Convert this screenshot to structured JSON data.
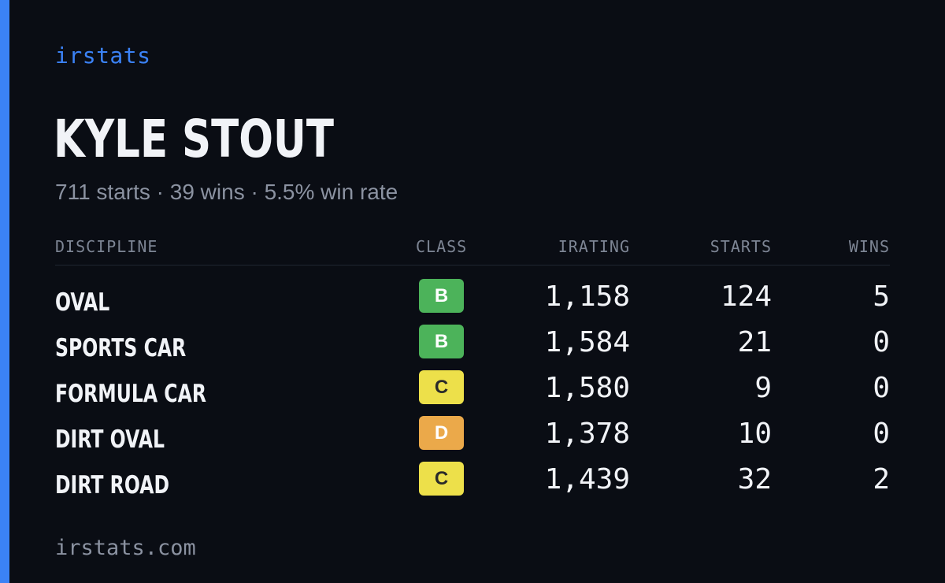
{
  "brand": "irstats",
  "driver_name": "KYLE STOUT",
  "summary": "711 starts · 39 wins · 5.5% win rate",
  "table": {
    "headers": {
      "discipline": "DISCIPLINE",
      "class": "CLASS",
      "irating": "IRATING",
      "starts": "STARTS",
      "wins": "WINS"
    },
    "rows": [
      {
        "discipline": "OVAL",
        "class": "B",
        "class_color": "#4cb35a",
        "class_text_color": "#ffffff",
        "irating": "1,158",
        "starts": "124",
        "wins": "5"
      },
      {
        "discipline": "SPORTS CAR",
        "class": "B",
        "class_color": "#4cb35a",
        "class_text_color": "#ffffff",
        "irating": "1,584",
        "starts": "21",
        "wins": "0"
      },
      {
        "discipline": "FORMULA CAR",
        "class": "C",
        "class_color": "#ede04a",
        "class_text_color": "#2a2a2a",
        "irating": "1,580",
        "starts": "9",
        "wins": "0"
      },
      {
        "discipline": "DIRT OVAL",
        "class": "D",
        "class_color": "#eba94a",
        "class_text_color": "#ffffff",
        "irating": "1,378",
        "starts": "10",
        "wins": "0"
      },
      {
        "discipline": "DIRT ROAD",
        "class": "C",
        "class_color": "#ede04a",
        "class_text_color": "#2a2a2a",
        "irating": "1,439",
        "starts": "32",
        "wins": "2"
      }
    ]
  },
  "footer": "irstats.com",
  "colors": {
    "background": "#0a0d14",
    "accent": "#3b82f6",
    "text_primary": "#f1f3f7",
    "text_muted": "#8b92a1"
  }
}
